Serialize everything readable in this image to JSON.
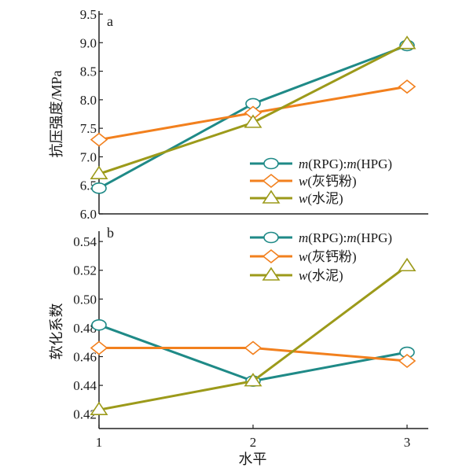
{
  "chart_data": [
    {
      "type": "line",
      "panel_label": "a",
      "ylabel": "抗压强度/MPa",
      "x": [
        1,
        2,
        3
      ],
      "ylim": [
        6.0,
        9.5
      ],
      "yticks": [
        "6.0",
        "6.5",
        "7.0",
        "7.5",
        "8.0",
        "8.5",
        "9.0",
        "9.5"
      ],
      "legend_position": "lower-right",
      "series": [
        {
          "name_parts": [
            "m",
            "(RPG):",
            "m",
            "(HPG)"
          ],
          "values": [
            6.45,
            7.93,
            8.95
          ],
          "color": "#1f8a87",
          "marker": "circle"
        },
        {
          "name_parts": [
            "w",
            "(灰钙粉)"
          ],
          "values": [
            7.3,
            7.77,
            8.23
          ],
          "color": "#f2801e",
          "marker": "diamond"
        },
        {
          "name_parts": [
            "w",
            "(水泥)"
          ],
          "values": [
            6.7,
            7.6,
            8.98
          ],
          "color": "#9c9a1a",
          "marker": "triangle"
        }
      ]
    },
    {
      "type": "line",
      "panel_label": "b",
      "ylabel": "软化系数",
      "xlabel": "水平",
      "x": [
        1,
        2,
        3
      ],
      "xticks": [
        "1",
        "2",
        "3"
      ],
      "ylim": [
        0.41,
        0.545
      ],
      "yticks": [
        "0.42",
        "0.44",
        "0.46",
        "0.48",
        "0.50",
        "0.52",
        "0.54"
      ],
      "legend_position": "top-right",
      "series": [
        {
          "name_parts": [
            "m",
            "(RPG):",
            "m",
            "(HPG)"
          ],
          "values": [
            0.482,
            0.443,
            0.463
          ],
          "color": "#1f8a87",
          "marker": "circle"
        },
        {
          "name_parts": [
            "w",
            "(灰钙粉)"
          ],
          "values": [
            0.466,
            0.466,
            0.457
          ],
          "color": "#f2801e",
          "marker": "diamond"
        },
        {
          "name_parts": [
            "w",
            "(水泥)"
          ],
          "values": [
            0.423,
            0.443,
            0.523
          ],
          "color": "#9c9a1a",
          "marker": "triangle"
        }
      ]
    }
  ]
}
